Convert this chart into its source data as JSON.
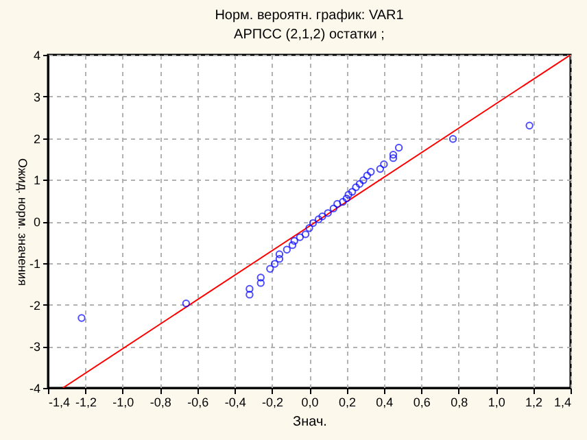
{
  "chart_data": {
    "type": "scatter",
    "title": "Норм. вероятн. график: VAR1",
    "subtitle": "АРПСС (2,1,2) остатки ;",
    "xlabel": "Знач.",
    "ylabel": "Ожид. норм. значения",
    "xlim": [
      -1.4,
      1.4
    ],
    "ylim": [
      -4,
      4
    ],
    "xticks": [
      {
        "value": -1.4,
        "label": "-1,4"
      },
      {
        "value": -1.2,
        "label": "-1,2"
      },
      {
        "value": -1.0,
        "label": "-1,0"
      },
      {
        "value": -0.8,
        "label": "-0,8"
      },
      {
        "value": -0.6,
        "label": "-0,6"
      },
      {
        "value": -0.4,
        "label": "-0,4"
      },
      {
        "value": -0.2,
        "label": "-0,2"
      },
      {
        "value": 0,
        "label": "0,0"
      },
      {
        "value": 0.2,
        "label": "0,2"
      },
      {
        "value": 0.4,
        "label": "0,4"
      },
      {
        "value": 0.6,
        "label": "0,6"
      },
      {
        "value": 0.8,
        "label": "0,8"
      },
      {
        "value": 1.0,
        "label": "1,0"
      },
      {
        "value": 1.2,
        "label": "1,2"
      },
      {
        "value": 1.4,
        "label": "1,4"
      }
    ],
    "yticks": [
      -4,
      -3,
      -2,
      -1,
      0,
      1,
      2,
      3,
      4
    ],
    "grid": true,
    "series": [
      {
        "type": "line",
        "color": "#ff0000",
        "marker": "none",
        "line_style": "solid",
        "x": [
          -1.32,
          1.4
        ],
        "values": [
          -4,
          4
        ]
      },
      {
        "type": "scatter",
        "color": "#0000ff",
        "marker": "circle",
        "x": [
          -1.22,
          -0.66,
          -0.32,
          -0.32,
          -0.26,
          -0.26,
          -0.21,
          -0.185,
          -0.16,
          -0.16,
          -0.12,
          -0.09,
          -0.08,
          -0.05,
          -0.02,
          0.0,
          0.02,
          0.05,
          0.07,
          0.1,
          0.13,
          0.15,
          0.18,
          0.2,
          0.21,
          0.23,
          0.25,
          0.27,
          0.29,
          0.31,
          0.33,
          0.38,
          0.4,
          0.45,
          0.45,
          0.48,
          0.77,
          1.18
        ],
        "values": [
          -2.32,
          -1.97,
          -1.62,
          -1.76,
          -1.35,
          -1.48,
          -1.14,
          -1.02,
          -0.9,
          -0.79,
          -0.68,
          -0.57,
          -0.47,
          -0.38,
          -0.31,
          -0.16,
          -0.04,
          0.05,
          0.12,
          0.2,
          0.31,
          0.42,
          0.47,
          0.55,
          0.64,
          0.71,
          0.82,
          0.9,
          0.99,
          1.1,
          1.19,
          1.26,
          1.37,
          1.52,
          1.6,
          1.77,
          1.98,
          2.3
        ]
      }
    ]
  }
}
